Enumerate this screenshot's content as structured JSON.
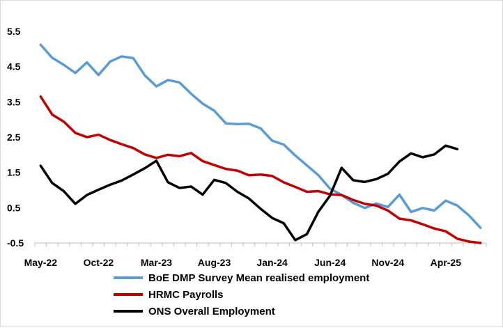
{
  "chart_data": {
    "type": "line",
    "title": "",
    "xlabel": "",
    "ylabel": "",
    "ylim": [
      -0.5,
      5.5
    ],
    "yticks": [
      5.5,
      4.5,
      3.5,
      2.5,
      1.5,
      0.5,
      -0.5
    ],
    "ytick_labels": [
      "5.5",
      "4.5",
      "3.5",
      "2.5",
      "1.5",
      "0.5",
      "-0.5"
    ],
    "x": [
      "2022-05",
      "2022-06",
      "2022-07",
      "2022-08",
      "2022-09",
      "2022-10",
      "2022-11",
      "2022-12",
      "2023-01",
      "2023-02",
      "2023-03",
      "2023-04",
      "2023-05",
      "2023-06",
      "2023-07",
      "2023-08",
      "2023-09",
      "2023-10",
      "2023-11",
      "2023-12",
      "2024-01",
      "2024-02",
      "2024-03",
      "2024-04",
      "2024-05",
      "2024-06",
      "2024-07",
      "2024-08",
      "2024-09",
      "2024-10",
      "2024-11",
      "2024-12",
      "2025-01",
      "2025-02",
      "2025-03",
      "2025-04",
      "2025-05",
      "2025-06",
      "2025-07"
    ],
    "xtick_labels": [
      "May-22",
      "Oct-22",
      "Mar-23",
      "Aug-23",
      "Jan-24",
      "Jun-24",
      "Nov-24",
      "Apr-25"
    ],
    "xtick_positions": [
      "2022-05",
      "2022-10",
      "2023-03",
      "2023-08",
      "2024-01",
      "2024-06",
      "2024-11",
      "2025-04"
    ],
    "grid": false,
    "legend_position": "bottom",
    "series": [
      {
        "name": "BoE DMP Survey Mean realised employment",
        "color": "#5b9bd5",
        "values": [
          5.12,
          4.75,
          4.55,
          4.32,
          4.62,
          4.26,
          4.64,
          4.79,
          4.74,
          4.25,
          3.94,
          4.12,
          4.05,
          3.73,
          3.45,
          3.25,
          2.89,
          2.87,
          2.88,
          2.75,
          2.4,
          2.29,
          1.98,
          1.7,
          1.42,
          1.04,
          0.86,
          0.64,
          0.49,
          0.62,
          0.52,
          0.87,
          0.38,
          0.49,
          0.42,
          0.7,
          0.56,
          0.28,
          -0.07
        ]
      },
      {
        "name": "HRMC Payrolls",
        "color": "#c00000",
        "values": [
          3.65,
          3.14,
          2.94,
          2.62,
          2.5,
          2.57,
          2.42,
          2.3,
          2.19,
          2.01,
          1.91,
          2.0,
          1.96,
          2.05,
          1.82,
          1.71,
          1.6,
          1.55,
          1.42,
          1.44,
          1.4,
          1.22,
          1.09,
          0.95,
          0.97,
          0.88,
          0.86,
          0.72,
          0.61,
          0.56,
          0.42,
          0.19,
          0.14,
          0.03,
          -0.09,
          -0.17,
          -0.38,
          -0.46,
          -0.5
        ]
      },
      {
        "name": "ONS Overall Employment",
        "color": "#000000",
        "values": [
          1.69,
          1.2,
          0.97,
          0.61,
          0.86,
          1.01,
          1.15,
          1.27,
          1.44,
          1.62,
          1.83,
          1.22,
          1.06,
          1.1,
          0.87,
          1.29,
          1.2,
          0.95,
          0.76,
          0.47,
          0.21,
          0.06,
          -0.42,
          -0.25,
          0.39,
          0.84,
          1.63,
          1.28,
          1.23,
          1.31,
          1.46,
          1.81,
          2.04,
          1.93,
          2.01,
          2.26,
          2.16,
          null,
          null
        ]
      }
    ]
  }
}
